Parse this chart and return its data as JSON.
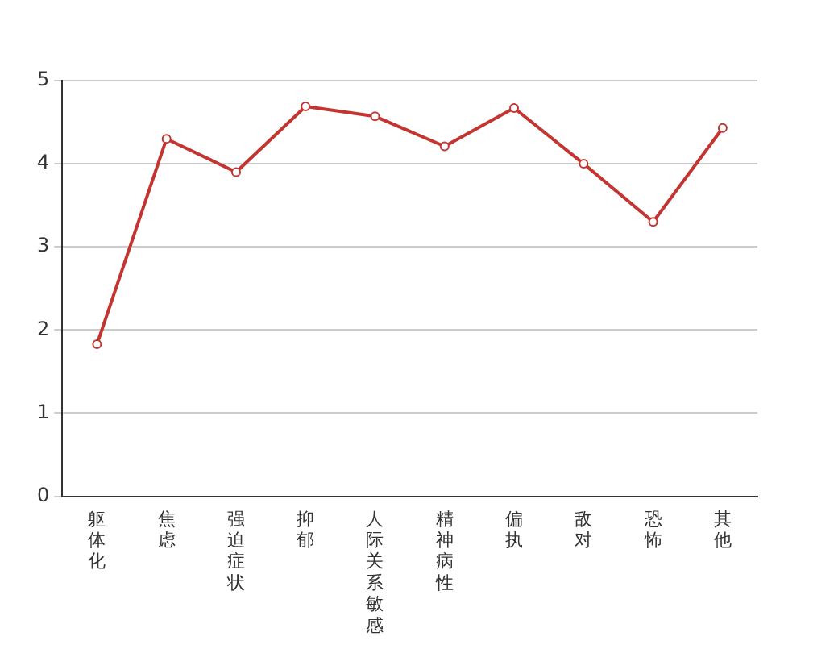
{
  "chart_data": {
    "type": "line",
    "categories": [
      "躯体化",
      "焦虑",
      "强迫症状",
      "抑郁",
      "人际关系敏感",
      "精神病性",
      "偏执",
      "敌对",
      "恐怖",
      "其他"
    ],
    "series": [
      {
        "color": "#c23531",
        "values": [
          1.83,
          4.3,
          3.9,
          4.69,
          4.57,
          4.21,
          4.67,
          4.0,
          3.3,
          4.43
        ]
      }
    ],
    "ylim": [
      0,
      5
    ],
    "yticks": [
      0,
      1,
      2,
      3,
      4,
      5
    ],
    "grid": "y",
    "marker": "circle",
    "line_style": "solid",
    "legend": false
  }
}
